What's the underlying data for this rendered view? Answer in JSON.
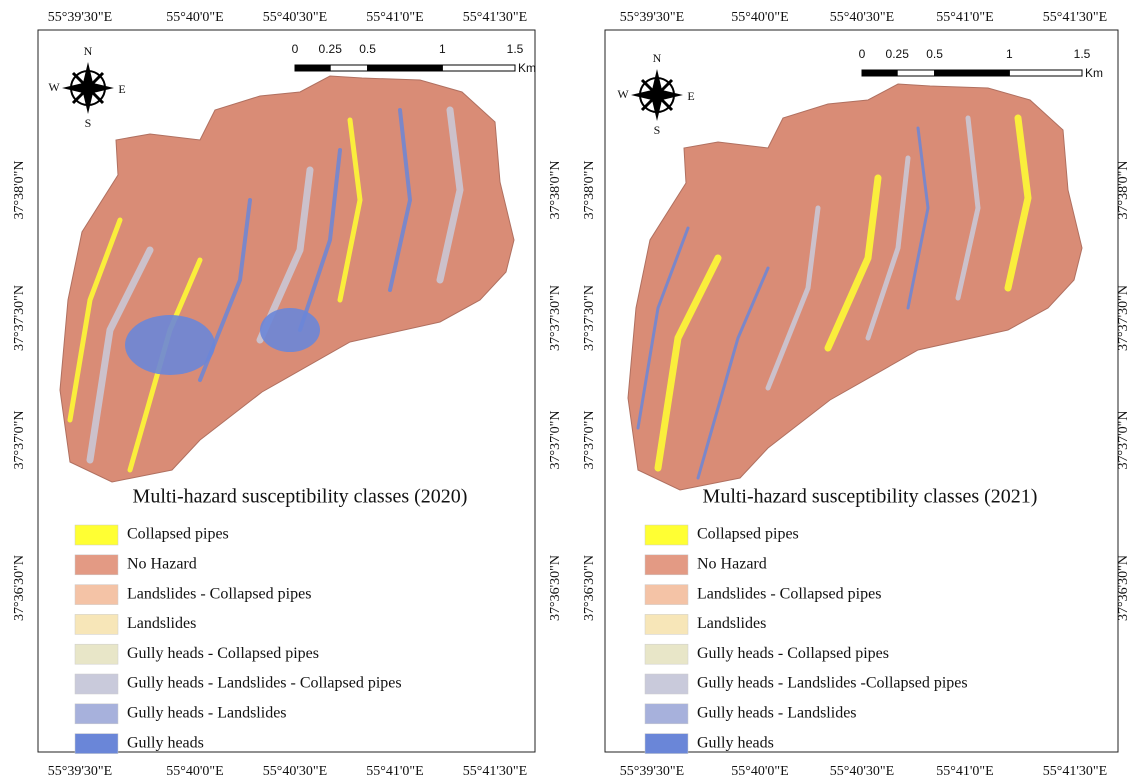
{
  "panels": [
    {
      "title": "Multi-hazard susceptibility classes (2020)",
      "lon_labels": [
        "55°39'30\"E",
        "55°40'0\"E",
        "55°40'30\"E",
        "55°41'0\"E",
        "55°41'30\"E"
      ],
      "lat_labels": [
        "37°38'0\"N",
        "37°37'30\"N",
        "37°37'0\"N",
        "37°36'30\"N"
      ],
      "scale_labels": [
        "0",
        "0.25",
        "0.5",
        "1",
        "1.5"
      ],
      "scale_unit": "Km",
      "compass": {
        "n": "N",
        "s": "S",
        "w": "W",
        "e": "E"
      },
      "legend": [
        {
          "label": "Collapsed pipes",
          "color": "#ffff33"
        },
        {
          "label": "No Hazard",
          "color": "#e39a84"
        },
        {
          "label": "Landslides - Collapsed pipes",
          "color": "#f4c3a6"
        },
        {
          "label": "Landslides",
          "color": "#f7e6b8"
        },
        {
          "label": "Gully heads - Collapsed pipes",
          "color": "#e8e6c8"
        },
        {
          "label": "Gully heads - Landslides - Collapsed pipes",
          "color": "#c9cadb"
        },
        {
          "label": "Gully heads - Landslides",
          "color": "#a7b1dc"
        },
        {
          "label": "Gully heads",
          "color": "#6a86d8"
        }
      ]
    },
    {
      "title": "Multi-hazard susceptibility classes (2021)",
      "lon_labels": [
        "55°39'30\"E",
        "55°40'0\"E",
        "55°40'30\"E",
        "55°41'0\"E",
        "55°41'30\"E"
      ],
      "lat_labels": [
        "37°38'0\"N",
        "37°37'30\"N",
        "37°37'0\"N",
        "37°36'30\"N"
      ],
      "scale_labels": [
        "0",
        "0.25",
        "0.5",
        "1",
        "1.5"
      ],
      "scale_unit": "Km",
      "compass": {
        "n": "N",
        "s": "S",
        "w": "W",
        "e": "E"
      },
      "legend": [
        {
          "label": "Collapsed pipes",
          "color": "#ffff33"
        },
        {
          "label": "No Hazard",
          "color": "#e39a84"
        },
        {
          "label": "Landslides - Collapsed pipes",
          "color": "#f4c3a6"
        },
        {
          "label": "Landslides",
          "color": "#f7e6b8"
        },
        {
          "label": "Gully heads - Collapsed pipes",
          "color": "#e8e6c8"
        },
        {
          "label": "Gully heads - Landslides -Collapsed pipes",
          "color": "#c9cadb"
        },
        {
          "label": "Gully heads - Landslides",
          "color": "#a7b1dc"
        },
        {
          "label": "Gully heads",
          "color": "#6a86d8"
        }
      ]
    }
  ]
}
